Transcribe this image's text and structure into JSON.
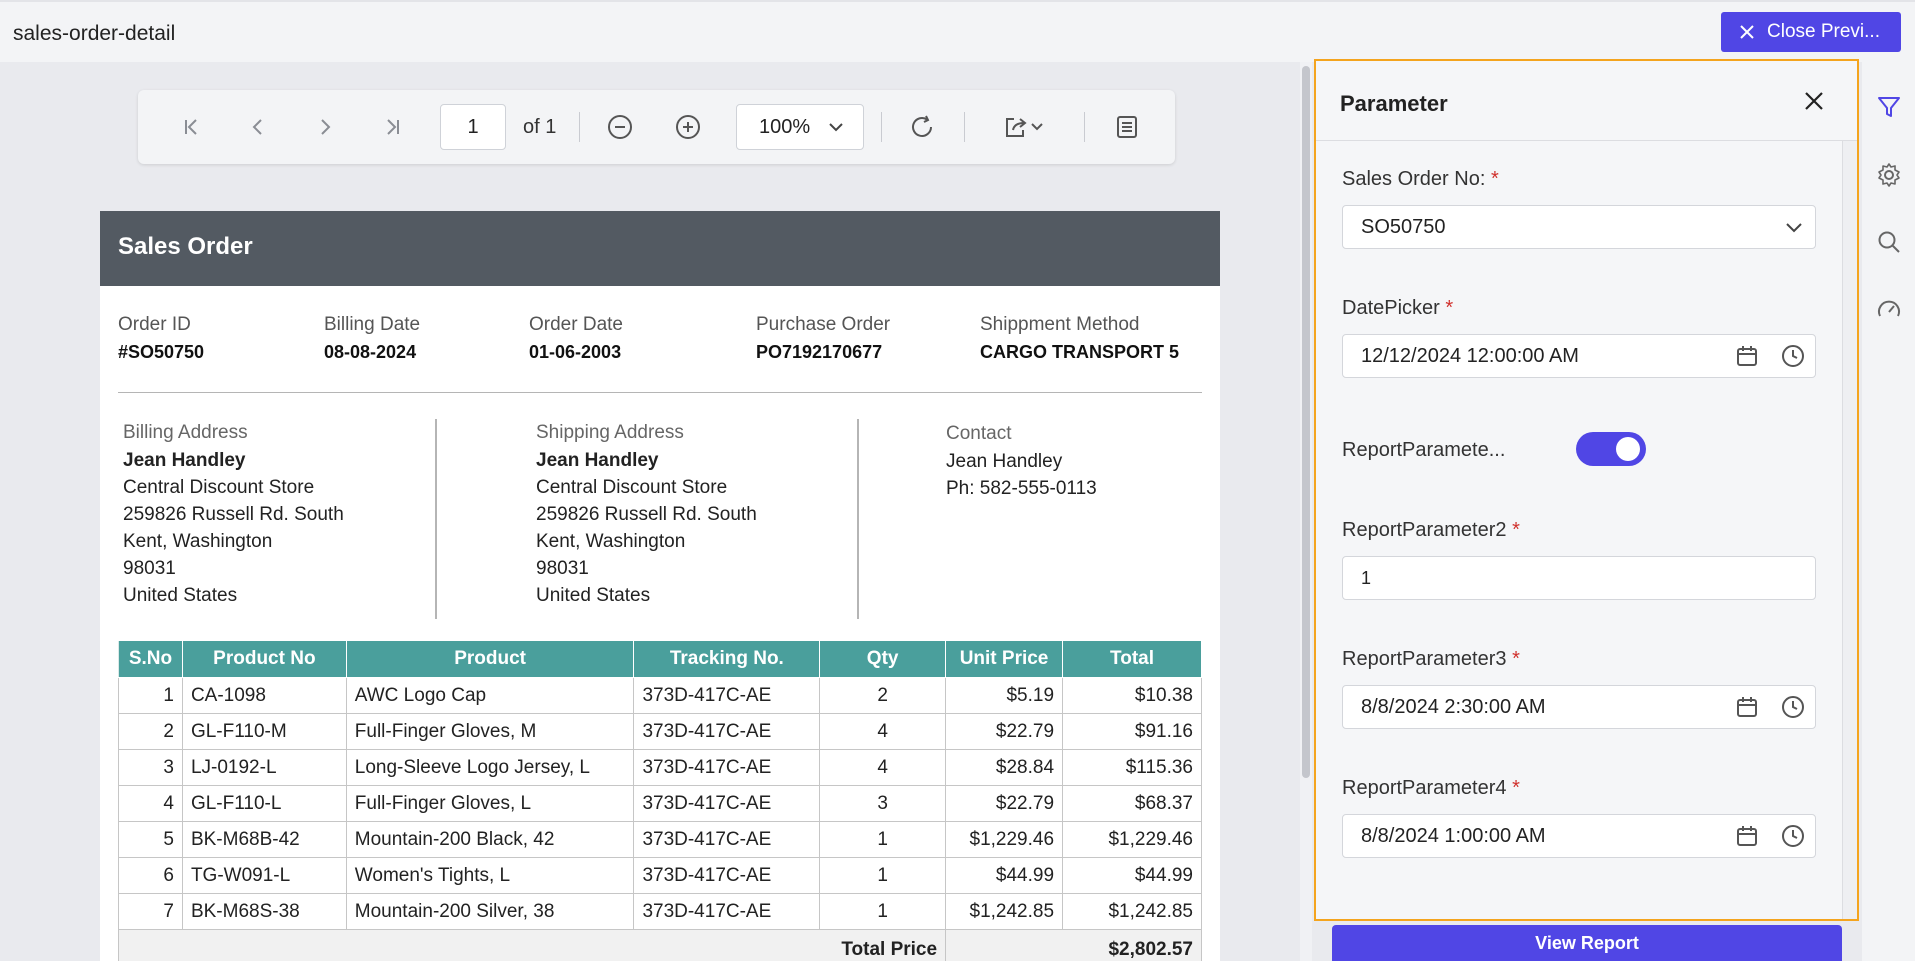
{
  "window": {
    "title": "sales-order-detail",
    "close_label": "Close Previ..."
  },
  "toolbar": {
    "page": "1",
    "page_of": "of 1",
    "zoom": "100%"
  },
  "report": {
    "title": "Sales Order",
    "meta": [
      {
        "label": "Order ID",
        "value": "#SO50750"
      },
      {
        "label": "Billing Date",
        "value": "08-08-2024"
      },
      {
        "label": "Order Date",
        "value": "01-06-2003"
      },
      {
        "label": "Purchase Order",
        "value": "PO7192170677"
      },
      {
        "label": "Shippment Method",
        "value": "CARGO TRANSPORT 5"
      }
    ],
    "billing": {
      "label": "Billing Address",
      "name": "Jean Handley",
      "line1": "Central Discount Store",
      "line2": "259826 Russell Rd. South",
      "line3": "Kent, Washington",
      "line4": "98031",
      "line5": "United States"
    },
    "shipping": {
      "label": "Shipping Address",
      "name": "Jean Handley",
      "line1": "Central Discount Store",
      "line2": "259826 Russell Rd. South",
      "line3": "Kent, Washington",
      "line4": "98031",
      "line5": "United States"
    },
    "contact": {
      "label": "Contact",
      "name": "Jean Handley",
      "phone": "Ph: 582-555-0113"
    },
    "columns": [
      "S.No",
      "Product No",
      "Product",
      "Tracking No.",
      "Qty",
      "Unit Price",
      "Total"
    ],
    "rows": [
      {
        "sno": "1",
        "product_no": "CA-1098",
        "product": "AWC Logo Cap",
        "tracking": "373D-417C-AE",
        "qty": "2",
        "unit": "$5.19",
        "total": "$10.38"
      },
      {
        "sno": "2",
        "product_no": "GL-F110-M",
        "product": "Full-Finger Gloves, M",
        "tracking": "373D-417C-AE",
        "qty": "4",
        "unit": "$22.79",
        "total": "$91.16"
      },
      {
        "sno": "3",
        "product_no": "LJ-0192-L",
        "product": "Long-Sleeve Logo Jersey, L",
        "tracking": "373D-417C-AE",
        "qty": "4",
        "unit": "$28.84",
        "total": "$115.36"
      },
      {
        "sno": "4",
        "product_no": "GL-F110-L",
        "product": "Full-Finger Gloves, L",
        "tracking": "373D-417C-AE",
        "qty": "3",
        "unit": "$22.79",
        "total": "$68.37"
      },
      {
        "sno": "5",
        "product_no": "BK-M68B-42",
        "product": "Mountain-200 Black, 42",
        "tracking": "373D-417C-AE",
        "qty": "1",
        "unit": "$1,229.46",
        "total": "$1,229.46"
      },
      {
        "sno": "6",
        "product_no": "TG-W091-L",
        "product": "Women's Tights, L",
        "tracking": "373D-417C-AE",
        "qty": "1",
        "unit": "$44.99",
        "total": "$44.99"
      },
      {
        "sno": "7",
        "product_no": "BK-M68S-38",
        "product": "Mountain-200 Silver, 38",
        "tracking": "373D-417C-AE",
        "qty": "1",
        "unit": "$1,242.85",
        "total": "$1,242.85"
      }
    ],
    "total_label": "Total Price",
    "total_value": "$2,802.57"
  },
  "panel": {
    "title": "Parameter",
    "sales_order_label": "Sales Order No:",
    "sales_order_value": "SO50750",
    "datepicker_label": "DatePicker",
    "datepicker_value": "12/12/2024 12:00:00 AM",
    "toggle_label": "ReportParamete...",
    "toggle_on": true,
    "p2_label": "ReportParameter2",
    "p2_value": "1",
    "p3_label": "ReportParameter3",
    "p3_value": "8/8/2024 2:30:00 AM",
    "p4_label": "ReportParameter4",
    "p4_value": "8/8/2024 1:00:00 AM",
    "required_mark": "*",
    "view_report": "View Report"
  },
  "colors": {
    "accent": "#5046e5",
    "panel_border": "#f4a41e",
    "header_teal": "#4a9f9c",
    "report_head": "#535a62"
  }
}
